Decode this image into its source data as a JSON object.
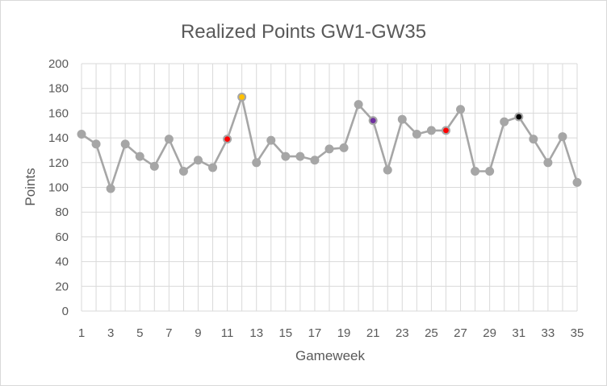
{
  "chart_data": {
    "type": "line",
    "title": "Realized Points GW1-GW35",
    "xlabel": "Gameweek",
    "ylabel": "Points",
    "xlim": [
      1,
      35
    ],
    "ylim": [
      0,
      200
    ],
    "y_ticks": [
      0,
      20,
      40,
      60,
      80,
      100,
      120,
      140,
      160,
      180,
      200
    ],
    "x_ticks": [
      1,
      3,
      5,
      7,
      9,
      11,
      13,
      15,
      17,
      19,
      21,
      23,
      25,
      27,
      29,
      31,
      33,
      35
    ],
    "grid": true,
    "legend": "none",
    "series": [
      {
        "color": "#a6a6a6",
        "x": [
          1,
          2,
          3,
          4,
          5,
          6,
          7,
          8,
          9,
          10,
          11,
          12,
          13,
          14,
          15,
          16,
          17,
          18,
          19,
          20,
          21,
          22,
          23,
          24,
          25,
          26,
          27,
          28,
          29,
          30,
          31,
          32,
          33,
          34,
          35
        ],
        "values": [
          143,
          135,
          99,
          135,
          125,
          117,
          139,
          113,
          122,
          116,
          139,
          173,
          120,
          138,
          125,
          125,
          122,
          131,
          132,
          167,
          154,
          114,
          155,
          143,
          146,
          146,
          163,
          113,
          113,
          153,
          157,
          139,
          120,
          141,
          104
        ]
      }
    ],
    "highlighted_points": [
      {
        "x": 11,
        "value": 139,
        "color": "#ff0000"
      },
      {
        "x": 12,
        "value": 173,
        "color": "#ffc000"
      },
      {
        "x": 21,
        "value": 154,
        "color": "#7030a0"
      },
      {
        "x": 26,
        "value": 146,
        "color": "#ff0000"
      },
      {
        "x": 31,
        "value": 157,
        "color": "#000000"
      }
    ]
  }
}
